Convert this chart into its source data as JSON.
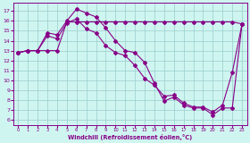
{
  "xlabel": "Windchill (Refroidissement éolien,°C)",
  "bg_color": "#cff5f0",
  "line_color": "#880088",
  "grid_color": "#99cccc",
  "xlim": [
    -0.5,
    23.5
  ],
  "ylim": [
    5.5,
    17.8
  ],
  "yticks": [
    6,
    7,
    8,
    9,
    10,
    11,
    12,
    13,
    14,
    15,
    16,
    17
  ],
  "xticks": [
    0,
    1,
    2,
    3,
    4,
    5,
    6,
    7,
    8,
    9,
    10,
    11,
    12,
    13,
    14,
    15,
    16,
    17,
    18,
    19,
    20,
    21,
    22,
    23
  ],
  "line1_x": [
    0,
    1,
    2,
    3,
    4,
    5,
    6,
    7,
    8,
    9,
    10,
    11,
    12,
    13,
    14,
    15,
    16,
    17,
    18,
    19,
    20,
    21,
    22,
    23
  ],
  "line1_y": [
    12.8,
    13.0,
    13.0,
    14.8,
    14.6,
    16.0,
    17.2,
    16.8,
    16.4,
    15.3,
    14.0,
    13.0,
    12.8,
    11.8,
    9.7,
    7.9,
    8.3,
    7.5,
    7.2,
    7.2,
    6.5,
    7.2,
    7.2,
    15.7
  ],
  "line2_x": [
    0,
    1,
    2,
    3,
    4,
    5,
    6,
    7,
    8,
    9,
    10,
    11,
    12,
    13,
    14,
    15,
    16,
    17,
    18,
    19,
    20,
    21,
    22,
    23
  ],
  "line2_y": [
    12.8,
    13.0,
    13.0,
    13.0,
    13.0,
    15.9,
    15.9,
    15.9,
    15.9,
    15.9,
    15.9,
    15.9,
    15.9,
    15.9,
    15.9,
    15.9,
    15.9,
    15.9,
    15.9,
    15.9,
    15.9,
    15.9,
    15.9,
    15.7
  ],
  "line3_x": [
    0,
    1,
    2,
    3,
    4,
    5,
    6,
    7,
    8,
    9,
    10,
    11,
    12,
    13,
    14,
    15,
    16,
    17,
    18,
    19,
    20,
    21,
    22,
    23
  ],
  "line3_y": [
    12.8,
    13.0,
    13.0,
    14.5,
    14.2,
    15.8,
    16.2,
    15.2,
    14.8,
    13.5,
    12.8,
    12.5,
    11.5,
    10.2,
    9.5,
    8.4,
    8.5,
    7.7,
    7.3,
    7.3,
    6.8,
    7.5,
    10.8,
    15.7
  ]
}
